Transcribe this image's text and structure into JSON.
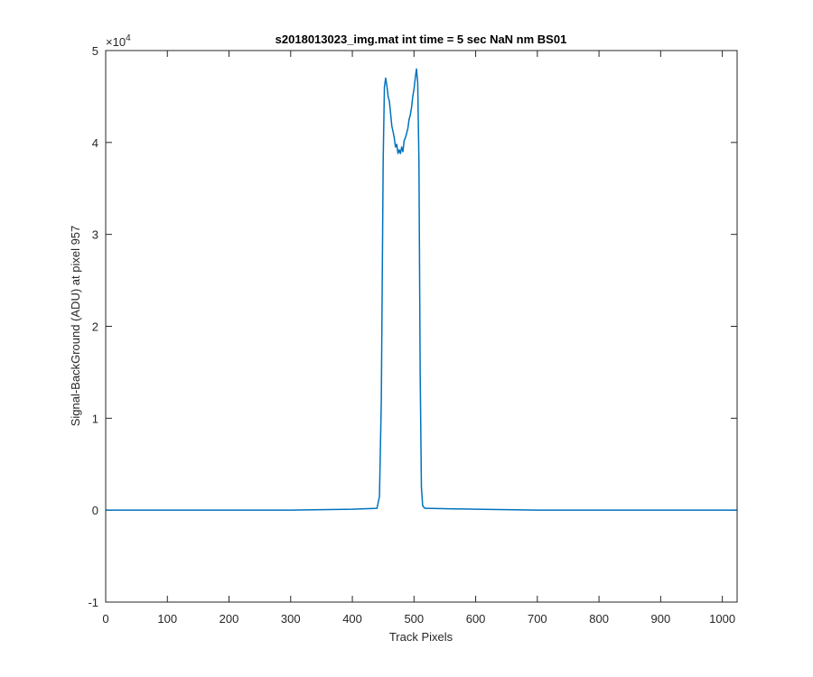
{
  "chart_data": {
    "type": "line",
    "title": "s2018013023_img.mat int time = 5 sec  NaN nm BS01",
    "xlabel": "Track Pixels",
    "ylabel": "Signal-BackGround (ADU) at pixel 957",
    "y_exponent_base": "×10",
    "y_exponent_power": "4",
    "xlim": [
      0,
      1024
    ],
    "ylim": [
      -1,
      5
    ],
    "y_scale_note": "values in units of 1e4 ADU",
    "x_ticks": [
      0,
      100,
      200,
      300,
      400,
      500,
      600,
      700,
      800,
      900,
      1000
    ],
    "x_tick_labels": [
      "0",
      "100",
      "200",
      "300",
      "400",
      "500",
      "600",
      "700",
      "800",
      "900",
      "1000"
    ],
    "y_ticks": [
      -1,
      0,
      1,
      2,
      3,
      4,
      5
    ],
    "y_tick_labels": [
      "-1",
      "0",
      "1",
      "2",
      "3",
      "4",
      "5"
    ],
    "grid": false,
    "line_color": "#0072BD",
    "series": [
      {
        "x": [
          0,
          100,
          200,
          300,
          400,
          440,
          444,
          447,
          450,
          452,
          454,
          456,
          458,
          460,
          462,
          464,
          466,
          468,
          470,
          472,
          474,
          476,
          478,
          480,
          482,
          484,
          486,
          488,
          490,
          492,
          494,
          496,
          498,
          500,
          502,
          504,
          506,
          508,
          510,
          512,
          514,
          516,
          518,
          520,
          600,
          700,
          800,
          900,
          1024
        ],
        "y": [
          0.0,
          0.0,
          0.0,
          0.0,
          0.01,
          0.02,
          0.15,
          1.2,
          3.8,
          4.6,
          4.7,
          4.62,
          4.5,
          4.45,
          4.32,
          4.18,
          4.12,
          4.05,
          3.95,
          3.98,
          3.88,
          3.92,
          3.88,
          3.95,
          3.9,
          4.02,
          4.05,
          4.1,
          4.15,
          4.25,
          4.3,
          4.38,
          4.5,
          4.58,
          4.7,
          4.8,
          4.65,
          3.8,
          1.5,
          0.25,
          0.05,
          0.03,
          0.02,
          0.02,
          0.01,
          0.0,
          0.0,
          0.0,
          0.0
        ]
      }
    ]
  }
}
